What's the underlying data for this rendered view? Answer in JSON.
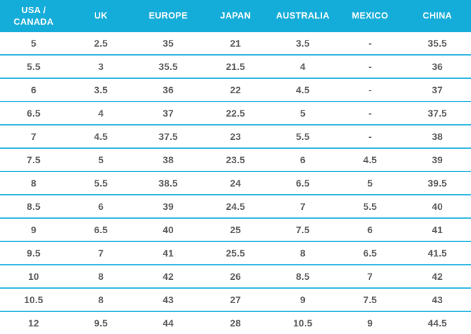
{
  "colors": {
    "header_bg": "#14ACD8",
    "header_text": "#FFFFFF",
    "divider": "#30B8E2",
    "cell_text": "#58595B",
    "page_bg": "#FFFFFF"
  },
  "chart_data": {
    "type": "table",
    "columns": [
      "USA /\nCANADA",
      "UK",
      "EUROPE",
      "JAPAN",
      "AUSTRALIA",
      "MEXICO",
      "CHINA"
    ],
    "rows": [
      [
        "5",
        "2.5",
        "35",
        "21",
        "3.5",
        "-",
        "35.5"
      ],
      [
        "5.5",
        "3",
        "35.5",
        "21.5",
        "4",
        "-",
        "36"
      ],
      [
        "6",
        "3.5",
        "36",
        "22",
        "4.5",
        "-",
        "37"
      ],
      [
        "6.5",
        "4",
        "37",
        "22.5",
        "5",
        "-",
        "37.5"
      ],
      [
        "7",
        "4.5",
        "37.5",
        "23",
        "5.5",
        "-",
        "38"
      ],
      [
        "7.5",
        "5",
        "38",
        "23.5",
        "6",
        "4.5",
        "39"
      ],
      [
        "8",
        "5.5",
        "38.5",
        "24",
        "6.5",
        "5",
        "39.5"
      ],
      [
        "8.5",
        "6",
        "39",
        "24.5",
        "7",
        "5.5",
        "40"
      ],
      [
        "9",
        "6.5",
        "40",
        "25",
        "7.5",
        "6",
        "41"
      ],
      [
        "9.5",
        "7",
        "41",
        "25.5",
        "8",
        "6.5",
        "41.5"
      ],
      [
        "10",
        "8",
        "42",
        "26",
        "8.5",
        "7",
        "42"
      ],
      [
        "10.5",
        "8",
        "43",
        "27",
        "9",
        "7.5",
        "43"
      ],
      [
        "12",
        "9.5",
        "44",
        "28",
        "10.5",
        "9",
        "44.5"
      ]
    ]
  }
}
